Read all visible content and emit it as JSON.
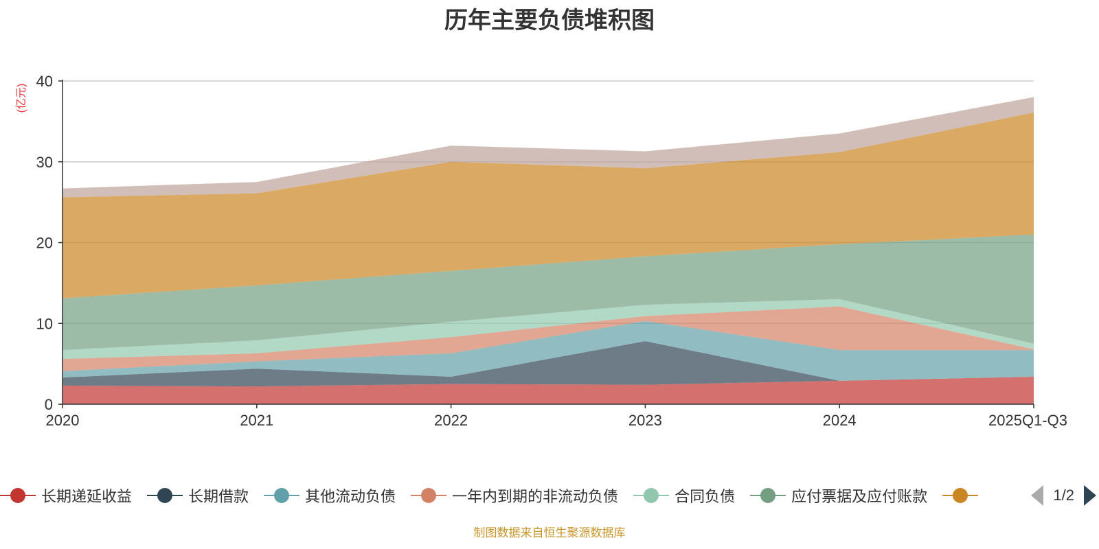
{
  "chart_data": {
    "type": "area",
    "stacked": true,
    "title": "历年主要负债堆积图",
    "ylabel": "(亿元)",
    "xlabel": "",
    "ylim": [
      0,
      40
    ],
    "yticks": [
      0,
      10,
      20,
      30,
      40
    ],
    "categories": [
      "2020",
      "2021",
      "2022",
      "2023",
      "2024",
      "2025Q1-Q3"
    ],
    "grid": true,
    "legend_position": "bottom",
    "series": [
      {
        "name": "长期递延收益",
        "color": "#c23531",
        "values": [
          2.3,
          2.2,
          2.5,
          2.4,
          2.9,
          3.4
        ]
      },
      {
        "name": "长期借款",
        "color": "#2f4554",
        "values": [
          1.0,
          2.2,
          0.9,
          5.4,
          0.0,
          0.0
        ]
      },
      {
        "name": "其他流动负债",
        "color": "#61a0a8",
        "values": [
          0.8,
          0.9,
          2.9,
          2.5,
          3.8,
          3.3
        ]
      },
      {
        "name": "一年内到期的非流动负债",
        "color": "#d48265",
        "values": [
          1.5,
          1.0,
          2.0,
          0.6,
          5.4,
          0.1
        ]
      },
      {
        "name": "合同负债",
        "color": "#91c7ae",
        "values": [
          1.1,
          1.6,
          1.9,
          1.4,
          0.9,
          0.7
        ]
      },
      {
        "name": "应付票据及应付账款",
        "color": "#749f83",
        "values": [
          6.4,
          6.8,
          6.3,
          6.0,
          6.8,
          13.5
        ]
      },
      {
        "name": "",
        "color": "#ca8622",
        "values": [
          12.5,
          11.4,
          13.5,
          10.9,
          11.4,
          15.1
        ]
      },
      {
        "name": "",
        "color": "#bda29a",
        "values": [
          1.1,
          1.4,
          2.0,
          2.1,
          2.3,
          1.9
        ]
      }
    ]
  },
  "legend": {
    "page_text": "1/2"
  },
  "source_note": "制图数据来自恒生聚源数据库",
  "colors": {
    "axis": "#333333",
    "grid": "#cccccc",
    "unit_label": "#e8383d",
    "source_note": "#c9962a"
  }
}
